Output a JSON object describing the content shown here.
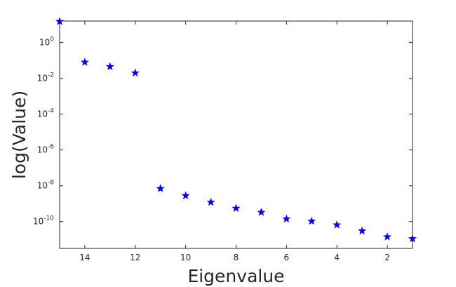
{
  "chart_data": {
    "type": "scatter",
    "title": "",
    "xlabel": "Eigenvalue",
    "ylabel": "log(Value)",
    "xlim": [
      15,
      1
    ],
    "x_reversed": true,
    "yscale": "log",
    "ylim_exponent": [
      -11.5,
      1.2
    ],
    "xticks": [
      14,
      12,
      10,
      8,
      6,
      4,
      2
    ],
    "yticks": [
      {
        "base": "10",
        "exp": "0",
        "power": 0
      },
      {
        "base": "10",
        "exp": "-2",
        "power": -2
      },
      {
        "base": "10",
        "exp": "-4",
        "power": -4
      },
      {
        "base": "10",
        "exp": "-6",
        "power": -6
      },
      {
        "base": "10",
        "exp": "-8",
        "power": -8
      },
      {
        "base": "10",
        "exp": "-10",
        "power": -10
      }
    ],
    "marker": "star",
    "marker_color": "#0000ff",
    "grid": false,
    "series": [
      {
        "x": [
          15,
          14,
          13,
          12,
          11,
          10,
          9,
          8,
          7,
          6,
          5,
          4,
          3,
          2,
          1
        ],
        "y": [
          15,
          0.08,
          0.045,
          0.02,
          7e-09,
          2.8e-09,
          1.2e-09,
          5.5e-10,
          3.3e-10,
          1.4e-10,
          1.05e-10,
          6.5e-11,
          3e-11,
          1.4e-11,
          1.1e-11
        ]
      }
    ]
  }
}
